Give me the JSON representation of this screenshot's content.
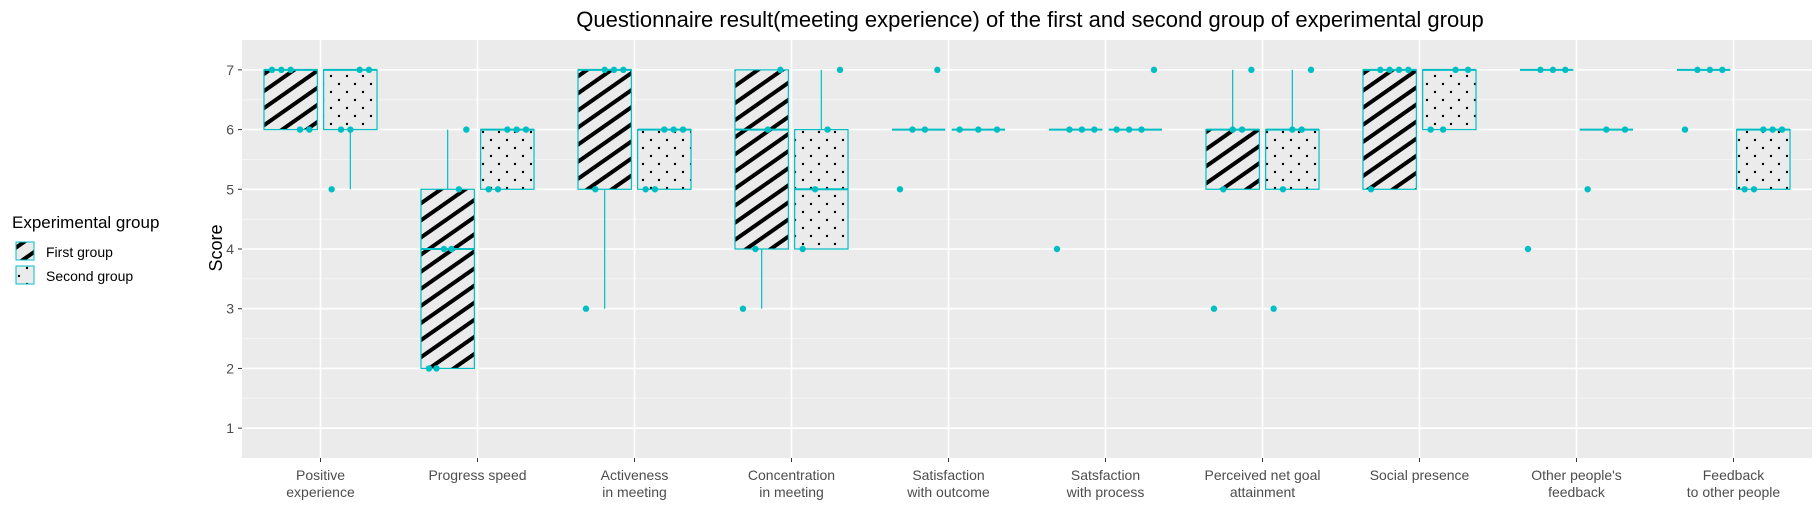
{
  "chart_data": {
    "type": "boxplot",
    "title": "Questionnaire result(meeting experience) of the first and second group of experimental group",
    "xlabel": "",
    "ylabel": "Score",
    "ylim": [
      0.5,
      7.5
    ],
    "yticks": [
      1,
      2,
      3,
      4,
      5,
      6,
      7
    ],
    "grid": true,
    "legend_position": "left",
    "legend": {
      "title": "Experimental group",
      "entries": [
        {
          "name": "First group",
          "pattern": "stripe"
        },
        {
          "name": "Second group",
          "pattern": "dots"
        }
      ]
    },
    "colors": {
      "box_outline": "#00BFC4",
      "point": "#00BFC4",
      "panel": "#EBEBEB",
      "grid": "#FFFFFF",
      "pattern": "#000000"
    },
    "categories": [
      [
        "Positive",
        "experience"
      ],
      [
        "Progress speed"
      ],
      [
        "Activeness",
        "in meeting"
      ],
      [
        "Concentration",
        "in meeting"
      ],
      [
        "Satisfaction",
        "with outcome"
      ],
      [
        "Satsfaction",
        "with process"
      ],
      [
        "Perceived net goal",
        "attainment"
      ],
      [
        "Social presence"
      ],
      [
        "Other people's",
        "feedback"
      ],
      [
        "Feedback",
        "to other people"
      ]
    ],
    "series": [
      {
        "name": "First group",
        "boxes": [
          {
            "min": 6,
            "q1": 6,
            "median": 7,
            "q3": 7,
            "max": 7,
            "points": [
              7,
              7,
              7,
              6,
              6
            ]
          },
          {
            "min": 2,
            "q1": 2,
            "median": 4,
            "q3": 5,
            "max": 6,
            "points": [
              2,
              2,
              4,
              4,
              5,
              6
            ]
          },
          {
            "min": 3,
            "q1": 5,
            "median": 7,
            "q3": 7,
            "max": 7,
            "points": [
              3,
              5,
              7,
              7,
              7
            ]
          },
          {
            "min": 3,
            "q1": 4,
            "median": 6,
            "q3": 7,
            "max": 7,
            "points": [
              3,
              4,
              6,
              7
            ]
          },
          {
            "min": 6,
            "q1": 6,
            "median": 6,
            "q3": 6,
            "max": 6,
            "points": [
              5,
              6,
              6,
              7
            ]
          },
          {
            "min": 6,
            "q1": 6,
            "median": 6,
            "q3": 6,
            "max": 6,
            "points": [
              4,
              6,
              6,
              6
            ]
          },
          {
            "min": 5,
            "q1": 5,
            "median": 6,
            "q3": 6,
            "max": 7,
            "points": [
              3,
              5,
              6,
              6,
              7
            ]
          },
          {
            "min": 5,
            "q1": 5,
            "median": 7,
            "q3": 7,
            "max": 7,
            "points": [
              5,
              7,
              7,
              7,
              7
            ]
          },
          {
            "min": 7,
            "q1": 7,
            "median": 7,
            "q3": 7,
            "max": 7,
            "points": [
              4,
              7,
              7,
              7
            ]
          },
          {
            "min": 7,
            "q1": 7,
            "median": 7,
            "q3": 7,
            "max": 7,
            "points": [
              6,
              7,
              7,
              7
            ]
          }
        ]
      },
      {
        "name": "Second group",
        "boxes": [
          {
            "min": 5,
            "q1": 6,
            "median": 7,
            "q3": 7,
            "max": 7,
            "points": [
              5,
              6,
              6,
              7,
              7
            ]
          },
          {
            "min": 5,
            "q1": 5,
            "median": 6,
            "q3": 6,
            "max": 6,
            "points": [
              5,
              5,
              6,
              6,
              6
            ]
          },
          {
            "min": 5,
            "q1": 5,
            "median": 6,
            "q3": 6,
            "max": 6,
            "points": [
              5,
              5,
              6,
              6,
              6
            ]
          },
          {
            "min": 4,
            "q1": 4,
            "median": 5,
            "q3": 6,
            "max": 7,
            "points": [
              4,
              5,
              6,
              7
            ]
          },
          {
            "min": 6,
            "q1": 6,
            "median": 6,
            "q3": 6,
            "max": 6,
            "points": [
              6,
              6,
              6
            ]
          },
          {
            "min": 6,
            "q1": 6,
            "median": 6,
            "q3": 6,
            "max": 6,
            "points": [
              6,
              6,
              6,
              7
            ]
          },
          {
            "min": 5,
            "q1": 5,
            "median": 6,
            "q3": 6,
            "max": 7,
            "points": [
              3,
              5,
              6,
              6,
              7
            ]
          },
          {
            "min": 6,
            "q1": 6,
            "median": 7,
            "q3": 7,
            "max": 7,
            "points": [
              6,
              6,
              7,
              7
            ]
          },
          {
            "min": 6,
            "q1": 6,
            "median": 6,
            "q3": 6,
            "max": 6,
            "points": [
              5,
              6,
              6
            ]
          },
          {
            "min": 5,
            "q1": 5,
            "median": 6,
            "q3": 6,
            "max": 6,
            "points": [
              5,
              5,
              6,
              6,
              6
            ]
          }
        ]
      }
    ]
  }
}
